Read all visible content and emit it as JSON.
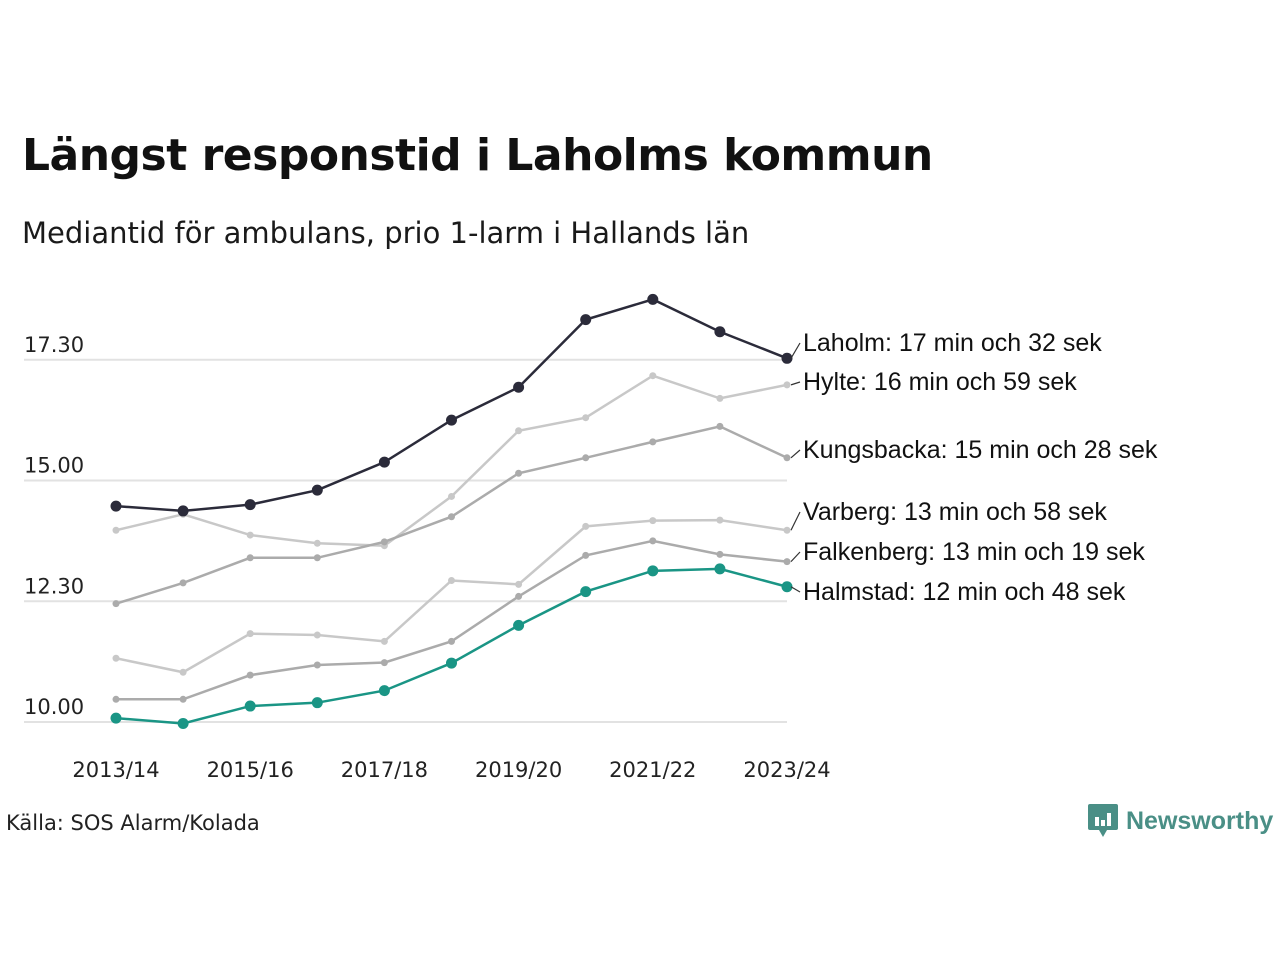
{
  "header": {
    "title": "Längst responstid i Laholms kommun",
    "subtitle": "Mediantid för ambulans, prio 1-larm i Hallands län"
  },
  "footer": {
    "source": "Källa: SOS Alarm/Kolada",
    "brand": "Newsworthy",
    "brand_color": "#4a8f86"
  },
  "chart_data": {
    "type": "line",
    "x": [
      "2013/14",
      "2014/15",
      "2015/16",
      "2016/17",
      "2017/18",
      "2018/19",
      "2019/20",
      "2020/21",
      "2021/22",
      "2022/23",
      "2023/24"
    ],
    "x_tick_labels": [
      "2013/14",
      "2015/16",
      "2017/18",
      "2019/20",
      "2021/22",
      "2023/24"
    ],
    "y_ticks": [
      {
        "value": 10,
        "label": "10.00"
      },
      {
        "value": 12.5,
        "label": "12.30"
      },
      {
        "value": 15,
        "label": "15.00"
      },
      {
        "value": 17.5,
        "label": "17.30"
      }
    ],
    "ylim": [
      10,
      18.5
    ],
    "grid": true,
    "series": [
      {
        "name": "Laholm",
        "label": "Laholm: 17 min och 32 sek",
        "color": "#2b2b3a",
        "highlight": true,
        "values": [
          14.47,
          14.37,
          14.5,
          14.8,
          15.38,
          16.25,
          16.93,
          18.33,
          18.75,
          18.08,
          17.53
        ]
      },
      {
        "name": "Hylte",
        "label": "Hylte: 16 min och 59 sek",
        "color": "#c8c8c8",
        "highlight": false,
        "values": [
          13.97,
          14.3,
          13.87,
          13.7,
          13.65,
          14.67,
          16.03,
          16.3,
          17.17,
          16.7,
          16.98
        ]
      },
      {
        "name": "Kungsbacka",
        "label": "Kungsbacka: 15 min och 28 sek",
        "color": "#ababab",
        "highlight": false,
        "values": [
          12.45,
          12.88,
          13.4,
          13.4,
          13.73,
          14.25,
          15.15,
          15.47,
          15.8,
          16.12,
          15.47
        ]
      },
      {
        "name": "Varberg",
        "label": "Varberg: 13 min och 58 sek",
        "color": "#c8c8c8",
        "highlight": false,
        "values": [
          11.32,
          11.03,
          11.83,
          11.8,
          11.67,
          12.93,
          12.85,
          14.05,
          14.17,
          14.18,
          13.97
        ]
      },
      {
        "name": "Falkenberg",
        "label": "Falkenberg: 13 min och 19 sek",
        "color": "#ababab",
        "highlight": false,
        "values": [
          10.47,
          10.47,
          10.97,
          11.18,
          11.23,
          11.67,
          12.6,
          13.45,
          13.75,
          13.47,
          13.32
        ]
      },
      {
        "name": "Halmstad",
        "label": "Halmstad: 12 min och 48 sek",
        "color": "#1a9585",
        "highlight": true,
        "values": [
          10.08,
          9.97,
          10.33,
          10.4,
          10.65,
          11.22,
          12.0,
          12.7,
          13.13,
          13.17,
          12.8
        ]
      }
    ]
  }
}
